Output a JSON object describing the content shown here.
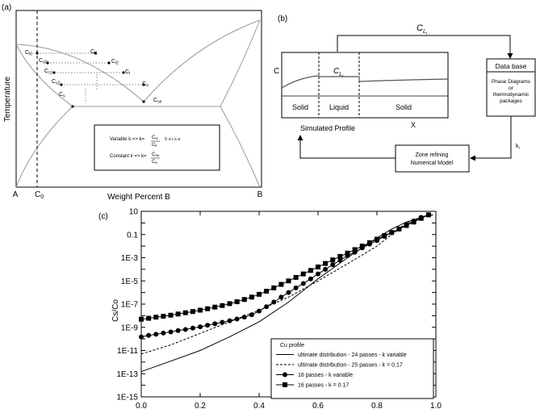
{
  "panel_a": {
    "label": "(a)",
    "ylabel": "Temperature",
    "xlabel": "Weight Percent B",
    "x_left": "A",
    "x_right": "B",
    "c0_label": "C",
    "c0_sub": "0",
    "points": [
      {
        "name": "C",
        "sub": "l0"
      },
      {
        "name": "C",
        "sub": "l1"
      },
      {
        "name": "C",
        "sub": "l2"
      },
      {
        "name": "C",
        "sub": "l"
      },
      {
        "name": "C",
        "sub": "e"
      },
      {
        "name": "C",
        "sub": "s0"
      },
      {
        "name": "C",
        "sub": "s1"
      },
      {
        "name": "C",
        "sub": "s2"
      },
      {
        "name": "C",
        "sub": "s"
      },
      {
        "name": "C",
        "sub": "se"
      }
    ],
    "legend": {
      "variable_text": "Variable k => k=",
      "variable_num": "C",
      "variable_num_sub": "si",
      "variable_den": "C",
      "variable_den_sub": "li",
      "variable_range": "0 ≤ i ≤ e",
      "constant_text": "Constant k => k=",
      "constant_num": "C",
      "constant_num_sub": "se",
      "constant_den": "C",
      "constant_den_sub": "e"
    }
  },
  "panel_b": {
    "label": "(b)",
    "top_label": "C",
    "top_label_sub": "L",
    "top_label_subsub": "i",
    "c_axis": "C",
    "x_axis": "X",
    "liquid_label": "C",
    "liquid_sub": "L",
    "liquid_subsub": "i",
    "regions": [
      "Solid",
      "Liquid",
      "Solid"
    ],
    "simulated_profile": "Simulated Profile",
    "database_title": "Data base",
    "database_body": [
      "Phase Diagrams",
      "or",
      "thermodynamic",
      "packages"
    ],
    "k_label": "k",
    "k_sub": "i",
    "model_lines": [
      "Zone refining",
      "Numerical Model"
    ]
  },
  "chart_data": {
    "type": "line",
    "panel_label": "(c)",
    "title": "",
    "xlabel": "",
    "ylabel": "Cs/Co",
    "xlim": [
      0,
      1
    ],
    "ylim": [
      1e-15,
      10
    ],
    "yscale": "log",
    "x_ticks": [
      "0.0",
      "0.2",
      "0.4",
      "0.6",
      "0.8",
      "1.0"
    ],
    "y_ticks": [
      "1E-15",
      "1E-13",
      "1E-11",
      "1E-9",
      "1E-7",
      "1E-5",
      "1E-3",
      "0.1",
      "10"
    ],
    "legend_title": "Cu profile",
    "legend_position": "bottom-right",
    "series": [
      {
        "name": "ultimate distribution - 24 passes - k variable",
        "style": "solid",
        "marker": "none",
        "x": [
          0.0,
          0.1,
          0.2,
          0.3,
          0.4,
          0.5,
          0.6,
          0.7,
          0.8,
          0.85,
          0.9,
          0.93,
          0.95,
          0.97,
          0.99
        ],
        "y": [
          1.5e-13,
          1.2e-12,
          1e-11,
          1.5e-10,
          3e-09,
          1.5e-07,
          1.5e-05,
          0.001,
          0.05,
          0.3,
          1.2,
          2.0,
          3.0,
          4.0,
          5.0
        ]
      },
      {
        "name": "ultimate distribution - 25 passes - k = 0.17",
        "style": "dashed",
        "marker": "none",
        "x": [
          0.0,
          0.1,
          0.2,
          0.3,
          0.4,
          0.5,
          0.6,
          0.7,
          0.8,
          0.85,
          0.9,
          0.93,
          0.95,
          0.97,
          0.99
        ],
        "y": [
          5e-12,
          3e-11,
          3e-10,
          3e-09,
          3e-08,
          4e-07,
          1e-05,
          0.0003,
          0.01,
          0.1,
          1.0,
          2.0,
          3.0,
          4.0,
          5.0
        ]
      },
      {
        "name": "16 passes - k variable",
        "style": "solid",
        "marker": "circle",
        "x": [
          0.0,
          0.025,
          0.05,
          0.075,
          0.1,
          0.125,
          0.15,
          0.175,
          0.2,
          0.225,
          0.25,
          0.275,
          0.3,
          0.325,
          0.35,
          0.375,
          0.4,
          0.425,
          0.45,
          0.475,
          0.5,
          0.525,
          0.55,
          0.575,
          0.6,
          0.625,
          0.65,
          0.675,
          0.7,
          0.725,
          0.75,
          0.775,
          0.8,
          0.825,
          0.85,
          0.875,
          0.9,
          0.925,
          0.95,
          0.975
        ],
        "y": [
          1.5e-10,
          2e-10,
          2.5e-10,
          3.2e-10,
          4e-10,
          5.2e-10,
          6.5e-10,
          8.5e-10,
          1.1e-09,
          1.5e-09,
          2e-09,
          2.7e-09,
          3.7e-09,
          5.2e-09,
          7.5e-09,
          1.2e-08,
          2.5e-08,
          6e-08,
          1.5e-07,
          4e-07,
          1e-06,
          2.5e-06,
          6e-06,
          1.5e-05,
          4e-05,
          0.0001,
          0.00025,
          0.0006,
          0.0015,
          0.003,
          0.007,
          0.015,
          0.03,
          0.07,
          0.15,
          0.3,
          0.7,
          1.5,
          3.0,
          5.0
        ]
      },
      {
        "name": "16 passes - k = 0.17",
        "style": "solid",
        "marker": "square",
        "x": [
          0.0,
          0.025,
          0.05,
          0.075,
          0.1,
          0.125,
          0.15,
          0.175,
          0.2,
          0.225,
          0.25,
          0.275,
          0.3,
          0.325,
          0.35,
          0.375,
          0.4,
          0.425,
          0.45,
          0.475,
          0.5,
          0.525,
          0.55,
          0.575,
          0.6,
          0.625,
          0.65,
          0.675,
          0.7,
          0.725,
          0.75,
          0.775,
          0.8,
          0.825,
          0.85,
          0.875,
          0.9,
          0.925,
          0.95,
          0.975
        ],
        "y": [
          5e-09,
          6e-09,
          7.5e-09,
          9e-09,
          1.1e-08,
          1.4e-08,
          1.8e-08,
          2.3e-08,
          3e-08,
          4e-08,
          5.5e-08,
          7.5e-08,
          1.1e-07,
          1.6e-07,
          2.5e-07,
          4e-07,
          7e-07,
          1.3e-06,
          2.5e-06,
          5e-06,
          1e-05,
          2e-05,
          4e-05,
          8e-05,
          0.00016,
          0.00032,
          0.00065,
          0.0013,
          0.0025,
          0.005,
          0.01,
          0.02,
          0.04,
          0.08,
          0.15,
          0.3,
          0.6,
          1.2,
          2.5,
          5.0
        ]
      }
    ]
  }
}
